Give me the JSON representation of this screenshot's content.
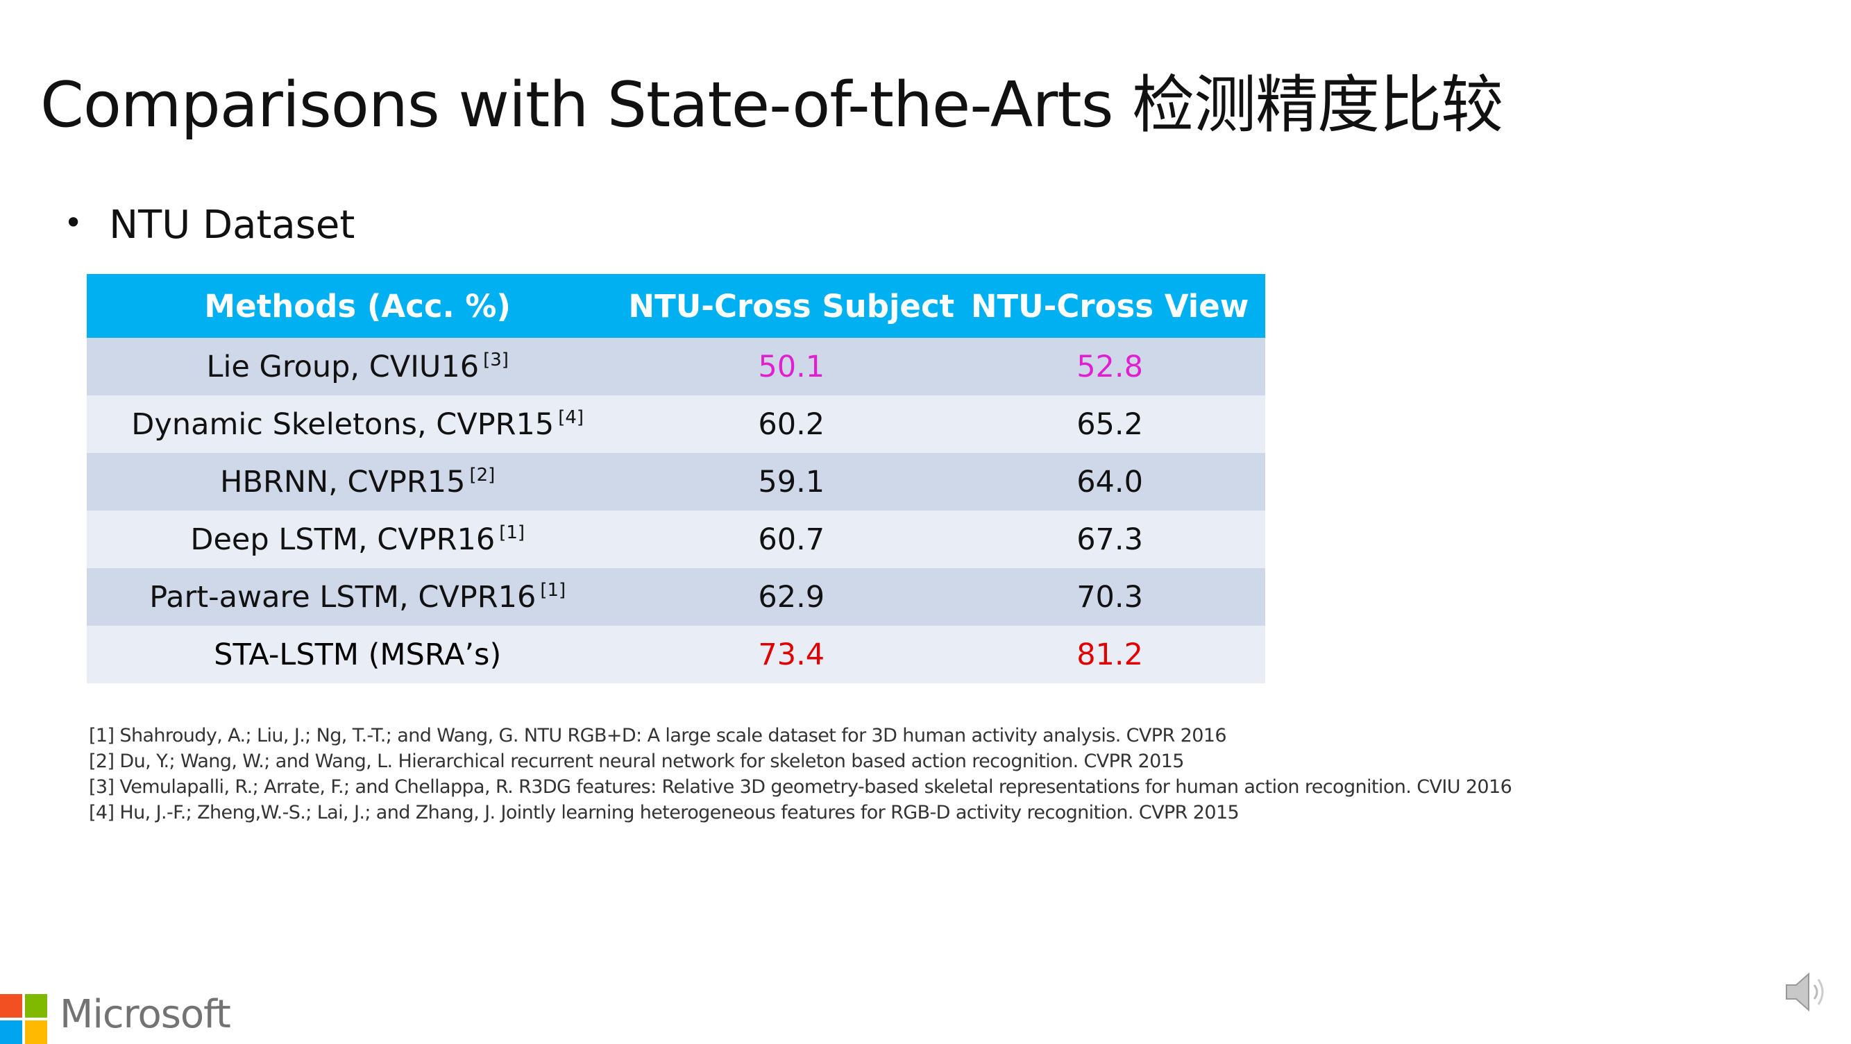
{
  "slide": {
    "title": "Comparisons with State-of-the-Arts 检测精度比较",
    "bullet": "NTU Dataset"
  },
  "table": {
    "headers": [
      "Methods (Acc. %)",
      "NTU-Cross Subject",
      "NTU-Cross View"
    ],
    "rows": [
      {
        "method": "Lie Group, CVIU16",
        "ref": "[3]",
        "cs": "50.1",
        "cv": "52.8",
        "color": "#E020D0"
      },
      {
        "method": "Dynamic Skeletons, CVPR15",
        "ref": "[4]",
        "cs": "60.2",
        "cv": "65.2",
        "color": "#111111"
      },
      {
        "method": "HBRNN, CVPR15",
        "ref": "[2]",
        "cs": "59.1",
        "cv": "64.0",
        "color": "#111111"
      },
      {
        "method": "Deep LSTM, CVPR16",
        "ref": "[1]",
        "cs": "60.7",
        "cv": "67.3",
        "color": "#111111"
      },
      {
        "method": "Part-aware LSTM, CVPR16",
        "ref": "[1]",
        "cs": "62.9",
        "cv": "70.3",
        "color": "#111111"
      },
      {
        "method": "STA-LSTM (MSRA’s)",
        "ref": "",
        "cs": "73.4",
        "cv": "81.2",
        "color": "#E00000"
      }
    ],
    "header_color": "#00B0F0"
  },
  "references": [
    "[1] Shahroudy, A.; Liu, J.; Ng, T.-T.; and Wang, G. NTU RGB+D: A large scale dataset for 3D human activity analysis. CVPR 2016",
    "[2] Du, Y.; Wang, W.; and Wang, L. Hierarchical recurrent neural network for skeleton based action recognition. CVPR 2015",
    "[3] Vemulapalli, R.; Arrate, F.; and Chellappa, R. R3DG features: Relative 3D geometry-based skeletal representations for human action recognition. CVIU 2016",
    "[4] Hu, J.-F.; Zheng,W.-S.; Lai, J.; and Zhang, J. Jointly learning heterogeneous features for RGB-D activity recognition. CVPR 2015"
  ],
  "footer": {
    "logo_text": "Microsoft",
    "logo_colors": [
      "#F25022",
      "#7FBA00",
      "#00A4EF",
      "#FFB900"
    ],
    "audio_icon": "speaker-icon"
  }
}
